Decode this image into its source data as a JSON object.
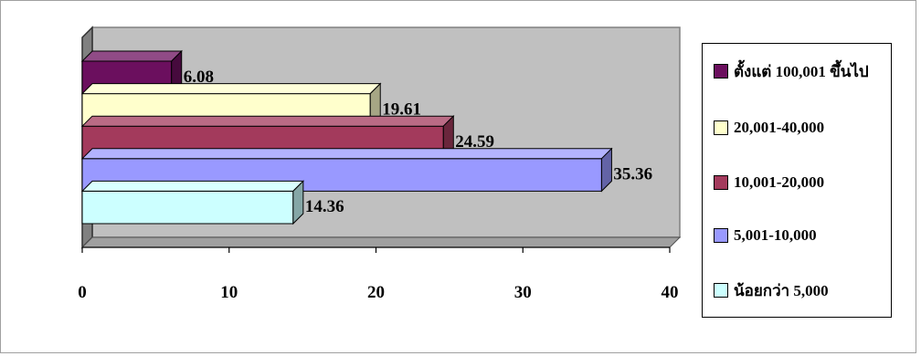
{
  "chart_data": {
    "type": "bar",
    "orientation": "horizontal",
    "three_d": true,
    "categories": [
      "ตั้งแต่ 100,001 ขึ้นไป",
      "20,001-40,000",
      "10,001-20,000",
      "5,001-10,000",
      "น้อยกว่า 5,000"
    ],
    "values": [
      6.08,
      19.61,
      24.59,
      35.36,
      14.36
    ],
    "value_labels": [
      "6.08",
      "19.61",
      "24.59",
      "35.36",
      "14.36"
    ],
    "colors": [
      "#6b0f5e",
      "#ffffcc",
      "#a33a5c",
      "#9999ff",
      "#ccffff"
    ],
    "xlim": [
      0,
      40
    ],
    "xticks": [
      "0",
      "10",
      "20",
      "30",
      "40"
    ],
    "grid": false,
    "legend_position": "right",
    "title": "",
    "xlabel": "",
    "ylabel": ""
  }
}
